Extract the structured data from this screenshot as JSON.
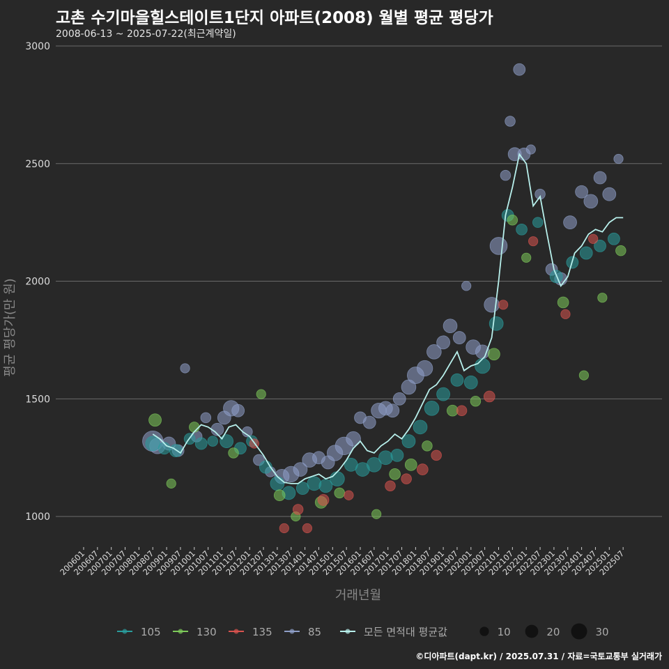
{
  "title": "고촌 수기마을힐스테이트1단지 아파트(2008) 월별 평균 평당가",
  "subtitle": "2008-06-13 ~ 2025-07-22(최근계약일)",
  "credit": "©디아파트(dapt.kr) / 2025.07.31 / 자료=국토교통부 실거래가",
  "colors": {
    "background": "#282828",
    "grid": "#6a6a6a",
    "s105": "#2a9d9d",
    "s130": "#7ecb5a",
    "s135": "#d9534f",
    "s85": "#8f9fc8",
    "avg": "#b8f0ec"
  },
  "chart_data": {
    "type": "scatter",
    "title": "고촌 수기마을힐스테이트1단지 아파트(2008) 월별 평균 평당가",
    "xlabel": "거래년월",
    "ylabel": "평균 평당가(만 원)",
    "ylim": [
      870,
      3000
    ],
    "yticks": [
      1000,
      1500,
      2000,
      2500,
      3000
    ],
    "xlim": [
      "200601",
      "202507"
    ],
    "xticks": [
      "200601",
      "200607",
      "200701",
      "200707",
      "200801",
      "200807",
      "200901",
      "200907",
      "201001",
      "201007",
      "201101",
      "201107",
      "201201",
      "201207",
      "201301",
      "201307",
      "201401",
      "201407",
      "201501",
      "201507",
      "201601",
      "201607",
      "201701",
      "201707",
      "201801",
      "201807",
      "201901",
      "201907",
      "202001",
      "202007",
      "202101",
      "202107",
      "202201",
      "202207",
      "202301",
      "202307",
      "202401",
      "202407",
      "202501",
      "202507"
    ],
    "legend": {
      "series": [
        {
          "name": "105",
          "color": "#2a9d9d"
        },
        {
          "name": "130",
          "color": "#7ecb5a"
        },
        {
          "name": "135",
          "color": "#d9534f"
        },
        {
          "name": "85",
          "color": "#8f9fc8"
        },
        {
          "name": "모든 면적대 평균값",
          "color": "#b8f0ec"
        }
      ],
      "sizes": [
        {
          "label": "10",
          "value": 10
        },
        {
          "label": "20",
          "value": 20
        },
        {
          "label": "30",
          "value": 30
        }
      ],
      "position": "bottom"
    },
    "average_line": {
      "name": "모든 면적대 평균값",
      "points": [
        [
          "2008-07",
          1350
        ],
        [
          "2008-10",
          1330
        ],
        [
          "2009-01",
          1300
        ],
        [
          "2009-04",
          1290
        ],
        [
          "2009-07",
          1270
        ],
        [
          "2009-10",
          1320
        ],
        [
          "2010-01",
          1360
        ],
        [
          "2010-04",
          1390
        ],
        [
          "2010-07",
          1380
        ],
        [
          "2010-10",
          1360
        ],
        [
          "2011-01",
          1330
        ],
        [
          "2011-04",
          1380
        ],
        [
          "2011-07",
          1390
        ],
        [
          "2011-10",
          1360
        ],
        [
          "2012-01",
          1340
        ],
        [
          "2012-04",
          1300
        ],
        [
          "2012-07",
          1260
        ],
        [
          "2012-10",
          1210
        ],
        [
          "2013-01",
          1170
        ],
        [
          "2013-04",
          1145
        ],
        [
          "2013-07",
          1140
        ],
        [
          "2013-10",
          1140
        ],
        [
          "2014-01",
          1160
        ],
        [
          "2014-04",
          1170
        ],
        [
          "2014-07",
          1180
        ],
        [
          "2014-10",
          1160
        ],
        [
          "2015-01",
          1170
        ],
        [
          "2015-04",
          1200
        ],
        [
          "2015-07",
          1240
        ],
        [
          "2015-10",
          1290
        ],
        [
          "2016-01",
          1320
        ],
        [
          "2016-04",
          1280
        ],
        [
          "2016-07",
          1270
        ],
        [
          "2016-10",
          1300
        ],
        [
          "2017-01",
          1320
        ],
        [
          "2017-04",
          1350
        ],
        [
          "2017-07",
          1330
        ],
        [
          "2017-10",
          1370
        ],
        [
          "2018-01",
          1420
        ],
        [
          "2018-04",
          1480
        ],
        [
          "2018-07",
          1540
        ],
        [
          "2018-10",
          1560
        ],
        [
          "2019-01",
          1600
        ],
        [
          "2019-04",
          1650
        ],
        [
          "2019-07",
          1700
        ],
        [
          "2019-10",
          1620
        ],
        [
          "2020-01",
          1640
        ],
        [
          "2020-04",
          1650
        ],
        [
          "2020-07",
          1680
        ],
        [
          "2020-10",
          1760
        ],
        [
          "2021-01",
          2000
        ],
        [
          "2021-04",
          2280
        ],
        [
          "2021-07",
          2400
        ],
        [
          "2021-10",
          2540
        ],
        [
          "2022-01",
          2500
        ],
        [
          "2022-04",
          2320
        ],
        [
          "2022-07",
          2360
        ],
        [
          "2022-10",
          2200
        ],
        [
          "2023-01",
          2050
        ],
        [
          "2023-04",
          1980
        ],
        [
          "2023-07",
          2020
        ],
        [
          "2023-10",
          2120
        ],
        [
          "2024-01",
          2150
        ],
        [
          "2024-04",
          2200
        ],
        [
          "2024-07",
          2220
        ],
        [
          "2024-10",
          2210
        ],
        [
          "2025-01",
          2250
        ],
        [
          "2025-04",
          2270
        ],
        [
          "2025-07",
          2270
        ]
      ]
    },
    "series": [
      {
        "name": "85",
        "points": [
          [
            "2008-07",
            1320,
            24
          ],
          [
            "2008-09",
            1300,
            14
          ],
          [
            "2009-02",
            1310,
            10
          ],
          [
            "2009-06",
            1280,
            8
          ],
          [
            "2009-09",
            1630,
            5
          ],
          [
            "2010-02",
            1340,
            7
          ],
          [
            "2010-06",
            1420,
            6
          ],
          [
            "2010-11",
            1370,
            9
          ],
          [
            "2011-02",
            1420,
            10
          ],
          [
            "2011-05",
            1460,
            14
          ],
          [
            "2011-08",
            1450,
            9
          ],
          [
            "2011-12",
            1360,
            6
          ],
          [
            "2012-05",
            1240,
            7
          ],
          [
            "2012-10",
            1190,
            6
          ],
          [
            "2013-03",
            1170,
            12
          ],
          [
            "2013-07",
            1180,
            14
          ],
          [
            "2013-11",
            1200,
            11
          ],
          [
            "2014-03",
            1240,
            12
          ],
          [
            "2014-07",
            1250,
            9
          ],
          [
            "2014-11",
            1230,
            10
          ],
          [
            "2015-02",
            1270,
            14
          ],
          [
            "2015-06",
            1300,
            18
          ],
          [
            "2015-10",
            1330,
            12
          ],
          [
            "2016-01",
            1420,
            8
          ],
          [
            "2016-05",
            1400,
            9
          ],
          [
            "2016-09",
            1450,
            13
          ],
          [
            "2016-12",
            1460,
            11
          ],
          [
            "2017-03",
            1450,
            10
          ],
          [
            "2017-06",
            1500,
            9
          ],
          [
            "2017-10",
            1550,
            12
          ],
          [
            "2018-01",
            1600,
            16
          ],
          [
            "2018-05",
            1630,
            14
          ],
          [
            "2018-09",
            1700,
            12
          ],
          [
            "2019-01",
            1740,
            10
          ],
          [
            "2019-04",
            1810,
            11
          ],
          [
            "2019-08",
            1760,
            9
          ],
          [
            "2019-11",
            1980,
            5
          ],
          [
            "2020-02",
            1720,
            12
          ],
          [
            "2020-06",
            1700,
            11
          ],
          [
            "2020-10",
            1900,
            13
          ],
          [
            "2021-01",
            2150,
            17
          ],
          [
            "2021-04",
            2450,
            6
          ],
          [
            "2021-06",
            2680,
            6
          ],
          [
            "2021-08",
            2540,
            10
          ],
          [
            "2021-10",
            2900,
            8
          ],
          [
            "2021-12",
            2540,
            9
          ],
          [
            "2022-03",
            2560,
            5
          ],
          [
            "2022-07",
            2370,
            6
          ],
          [
            "2022-12",
            2050,
            8
          ],
          [
            "2023-04",
            2010,
            9
          ],
          [
            "2023-08",
            2250,
            10
          ],
          [
            "2024-01",
            2380,
            9
          ],
          [
            "2024-05",
            2340,
            11
          ],
          [
            "2024-09",
            2440,
            9
          ],
          [
            "2025-01",
            2370,
            10
          ],
          [
            "2025-05",
            2520,
            5
          ]
        ]
      },
      {
        "name": "105",
        "points": [
          [
            "2008-07",
            1310,
            12
          ],
          [
            "2008-12",
            1290,
            8
          ],
          [
            "2009-05",
            1280,
            9
          ],
          [
            "2009-11",
            1330,
            7
          ],
          [
            "2010-04",
            1310,
            8
          ],
          [
            "2010-09",
            1320,
            6
          ],
          [
            "2011-03",
            1320,
            10
          ],
          [
            "2011-09",
            1290,
            8
          ],
          [
            "2012-02",
            1320,
            7
          ],
          [
            "2012-08",
            1210,
            9
          ],
          [
            "2013-01",
            1140,
            11
          ],
          [
            "2013-06",
            1100,
            10
          ],
          [
            "2013-12",
            1120,
            9
          ],
          [
            "2014-05",
            1140,
            11
          ],
          [
            "2014-10",
            1130,
            10
          ],
          [
            "2015-03",
            1160,
            12
          ],
          [
            "2015-09",
            1220,
            10
          ],
          [
            "2016-02",
            1200,
            11
          ],
          [
            "2016-07",
            1220,
            12
          ],
          [
            "2016-12",
            1250,
            11
          ],
          [
            "2017-05",
            1260,
            9
          ],
          [
            "2017-10",
            1320,
            10
          ],
          [
            "2018-03",
            1380,
            11
          ],
          [
            "2018-08",
            1460,
            12
          ],
          [
            "2019-01",
            1520,
            10
          ],
          [
            "2019-07",
            1580,
            9
          ],
          [
            "2020-01",
            1570,
            10
          ],
          [
            "2020-06",
            1640,
            13
          ],
          [
            "2020-12",
            1820,
            11
          ],
          [
            "2021-05",
            2280,
            8
          ],
          [
            "2021-11",
            2220,
            7
          ],
          [
            "2022-06",
            2250,
            6
          ],
          [
            "2023-02",
            2020,
            9
          ],
          [
            "2023-09",
            2080,
            8
          ],
          [
            "2024-03",
            2120,
            9
          ],
          [
            "2024-09",
            2150,
            8
          ],
          [
            "2025-03",
            2180,
            8
          ]
        ]
      },
      {
        "name": "130",
        "points": [
          [
            "2008-08",
            1410,
            9
          ],
          [
            "2009-03",
            1140,
            5
          ],
          [
            "2010-01",
            1380,
            6
          ],
          [
            "2011-06",
            1270,
            6
          ],
          [
            "2012-06",
            1520,
            5
          ],
          [
            "2013-02",
            1090,
            7
          ],
          [
            "2013-09",
            1000,
            5
          ],
          [
            "2014-08",
            1060,
            8
          ],
          [
            "2015-04",
            1100,
            6
          ],
          [
            "2016-08",
            1010,
            5
          ],
          [
            "2017-04",
            1180,
            7
          ],
          [
            "2017-11",
            1220,
            8
          ],
          [
            "2018-06",
            1300,
            6
          ],
          [
            "2019-05",
            1450,
            7
          ],
          [
            "2020-03",
            1490,
            6
          ],
          [
            "2020-11",
            1690,
            8
          ],
          [
            "2021-07",
            2260,
            6
          ],
          [
            "2022-01",
            2100,
            5
          ],
          [
            "2023-05",
            1910,
            7
          ],
          [
            "2024-02",
            1600,
            5
          ],
          [
            "2024-10",
            1930,
            5
          ],
          [
            "2025-06",
            2130,
            6
          ]
        ]
      },
      {
        "name": "135",
        "points": [
          [
            "2012-03",
            1310,
            5
          ],
          [
            "2013-04",
            950,
            5
          ],
          [
            "2013-10",
            1030,
            6
          ],
          [
            "2014-02",
            950,
            5
          ],
          [
            "2014-09",
            1070,
            7
          ],
          [
            "2015-08",
            1090,
            5
          ],
          [
            "2017-02",
            1130,
            6
          ],
          [
            "2017-09",
            1160,
            6
          ],
          [
            "2018-04",
            1200,
            7
          ],
          [
            "2018-10",
            1260,
            6
          ],
          [
            "2019-09",
            1450,
            6
          ],
          [
            "2020-09",
            1510,
            7
          ],
          [
            "2021-03",
            1900,
            5
          ],
          [
            "2022-04",
            2170,
            5
          ],
          [
            "2023-06",
            1860,
            5
          ],
          [
            "2024-06",
            2180,
            5
          ]
        ]
      }
    ]
  }
}
